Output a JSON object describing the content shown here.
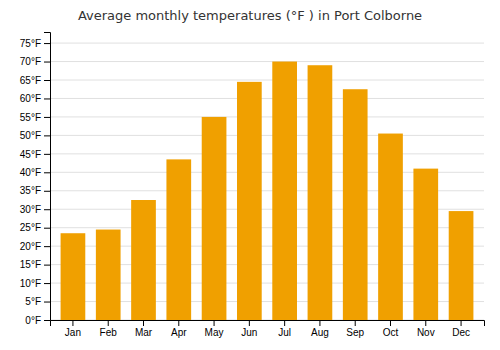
{
  "chart_data": {
    "type": "bar",
    "title": "Average monthly temperatures (°F ) in Port Colborne",
    "categories": [
      "Jan",
      "Feb",
      "Mar",
      "Apr",
      "May",
      "Jun",
      "Jul",
      "Aug",
      "Sep",
      "Oct",
      "Nov",
      "Dec"
    ],
    "values": [
      23.5,
      24.5,
      32.5,
      43.5,
      55.0,
      64.5,
      70.0,
      69.0,
      62.5,
      50.5,
      41.0,
      29.5
    ],
    "color": "#F0A000",
    "ylim": [
      0,
      78
    ],
    "yticks": [
      {
        "value": 0,
        "label": "0°F"
      },
      {
        "value": 5,
        "label": "5°F"
      },
      {
        "value": 10,
        "label": "10°F"
      },
      {
        "value": 15,
        "label": "15°F"
      },
      {
        "value": 20,
        "label": "20°F"
      },
      {
        "value": 25,
        "label": "25°F"
      },
      {
        "value": 30,
        "label": "30°F"
      },
      {
        "value": 35,
        "label": "35°F"
      },
      {
        "value": 40,
        "label": "40°F"
      },
      {
        "value": 45,
        "label": "45°F"
      },
      {
        "value": 50,
        "label": "50°F"
      },
      {
        "value": 55,
        "label": "55°F"
      },
      {
        "value": 60,
        "label": "60°F"
      },
      {
        "value": 65,
        "label": "65°F"
      },
      {
        "value": 70,
        "label": "70°F"
      },
      {
        "value": 75,
        "label": "75°F"
      }
    ],
    "grid": true
  }
}
